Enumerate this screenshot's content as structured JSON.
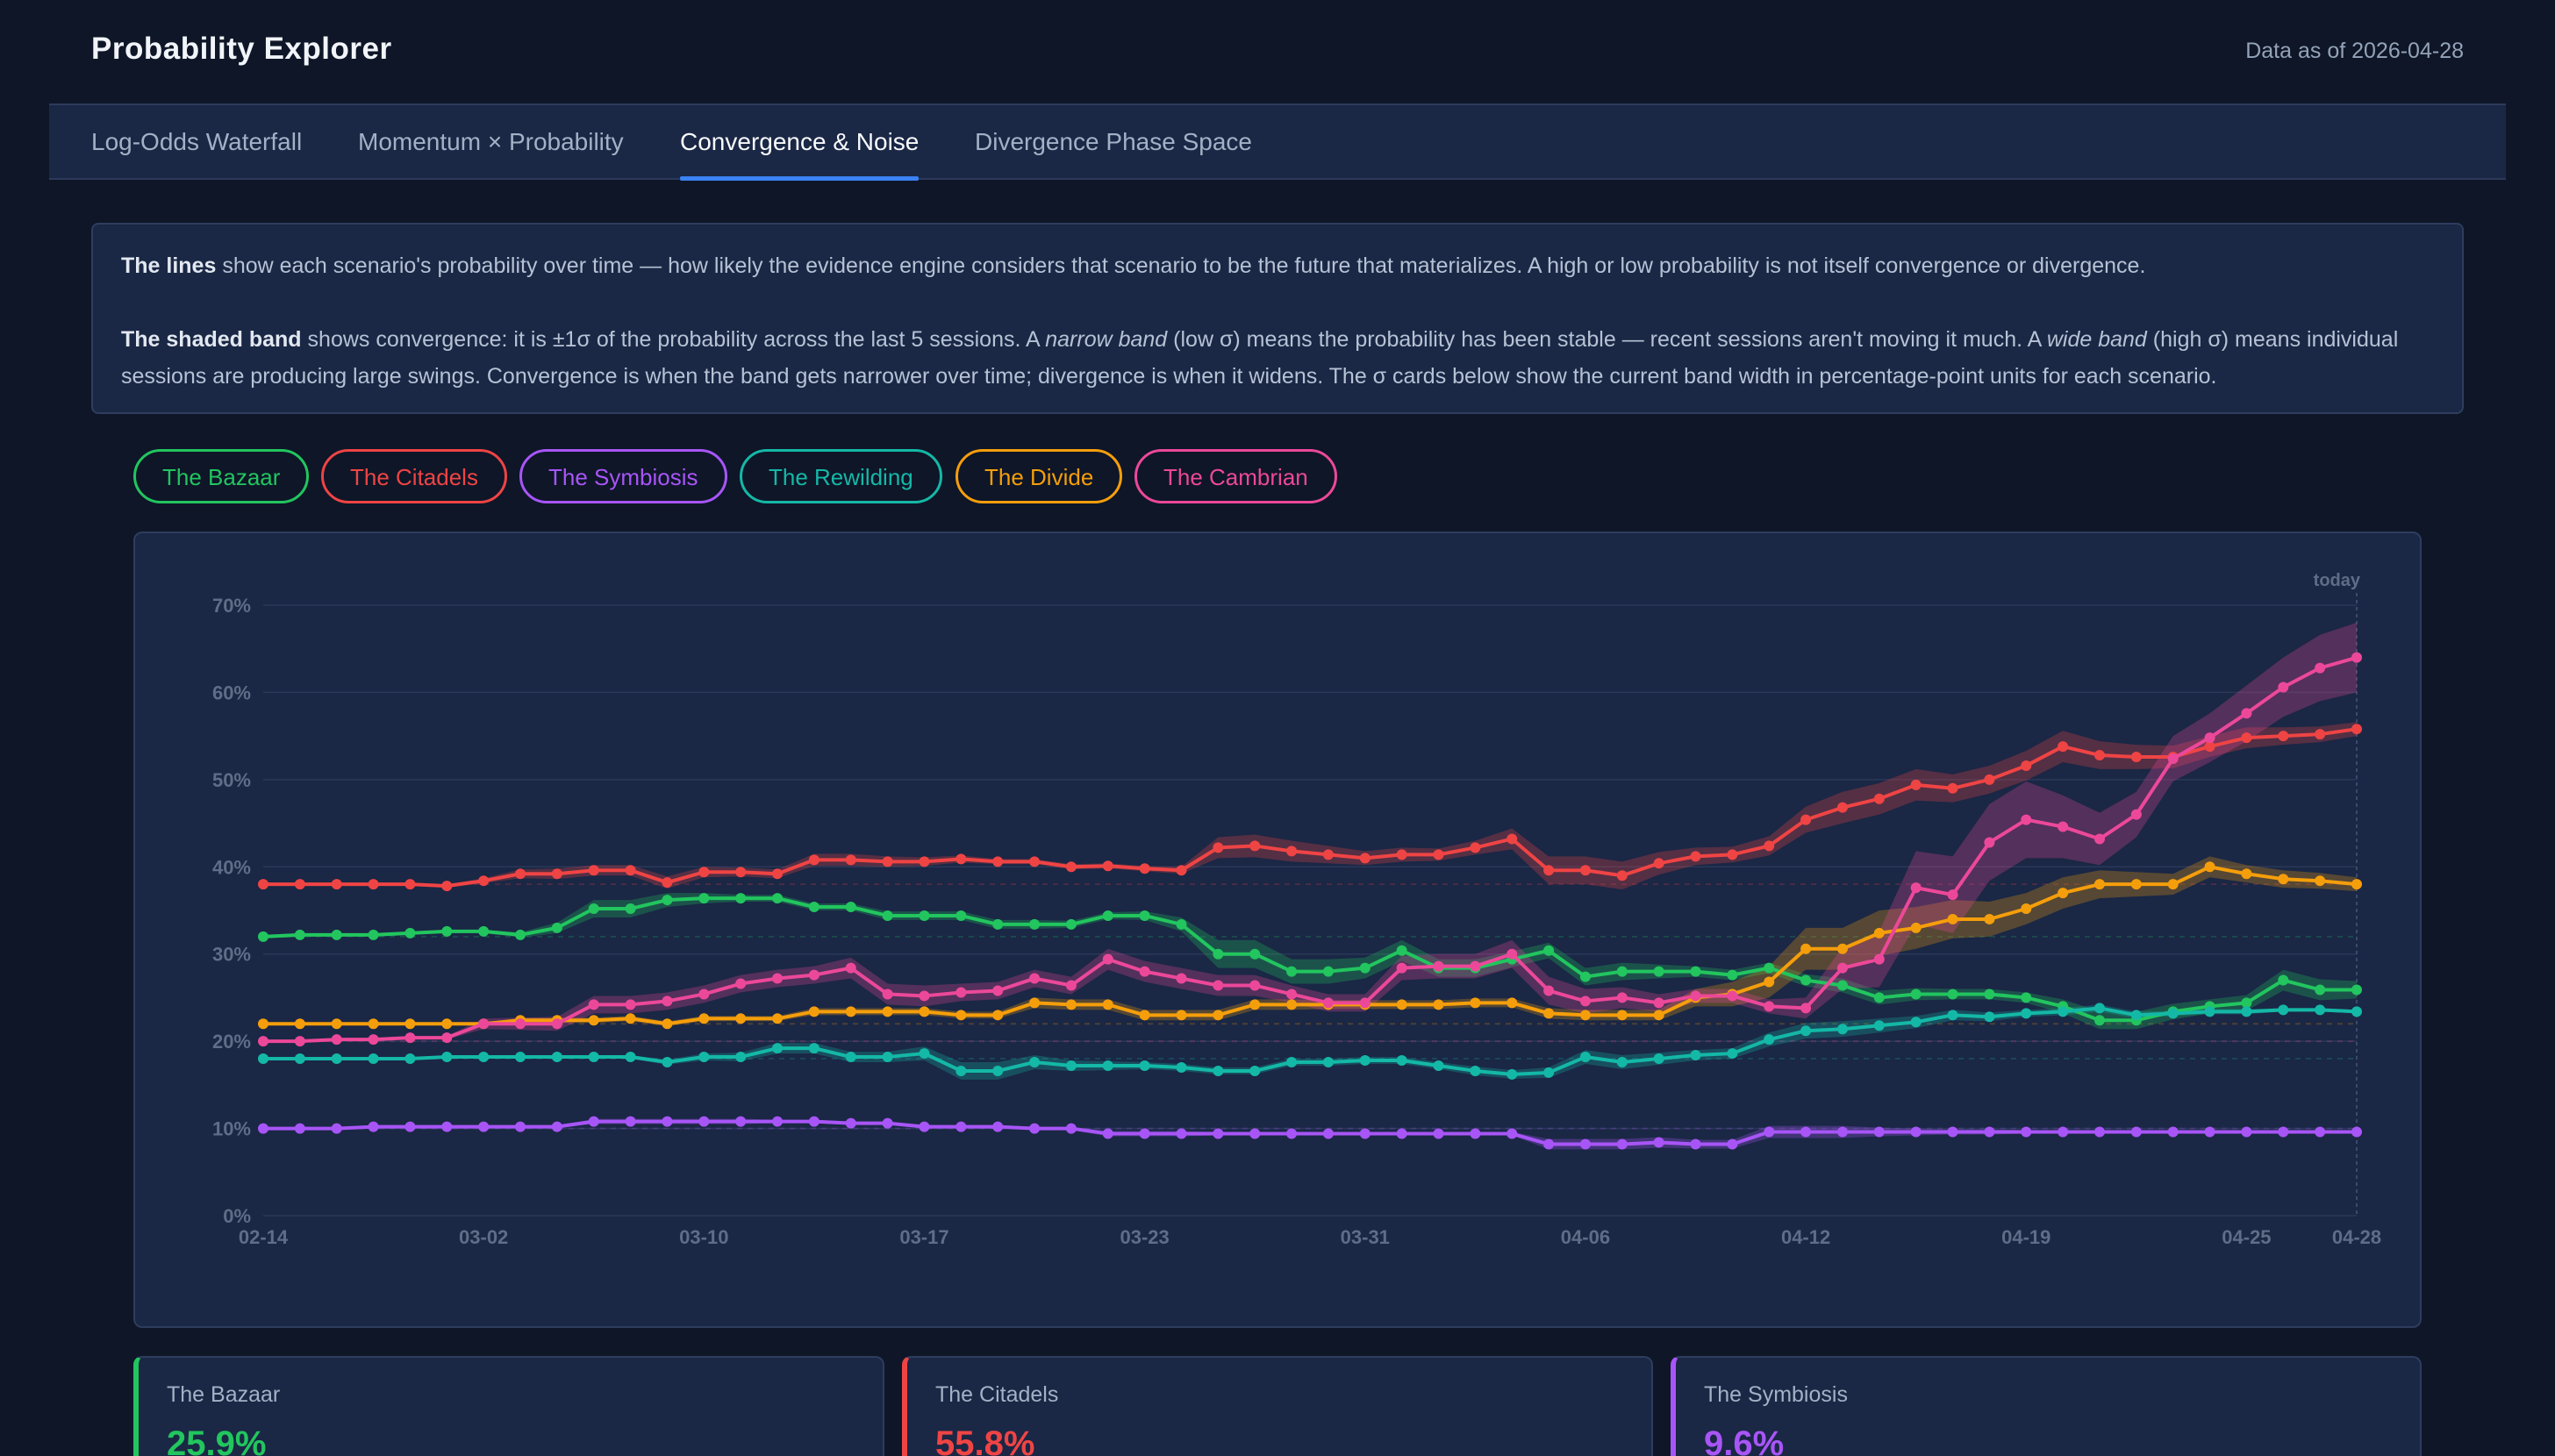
{
  "header": {
    "title": "Probability Explorer",
    "as_of": "Data as of 2026-04-28"
  },
  "tabs": [
    {
      "label": "Log-Odds Waterfall",
      "active": false
    },
    {
      "label": "Momentum × Probability",
      "active": false
    },
    {
      "label": "Convergence & Noise",
      "active": true
    },
    {
      "label": "Divergence Phase Space",
      "active": false
    }
  ],
  "explanation": {
    "p1_bold": "The lines",
    "p1_rest": " show each scenario's probability over time — how likely the evidence engine considers that scenario to be the future that materializes. A high or low probability is not itself convergence or divergence.",
    "p2_bold": "The shaded band",
    "p2_a": " shows convergence: it is ±1σ of the probability across the last 5 sessions. A ",
    "p2_narrow": "narrow band",
    "p2_b": " (low σ) means the probability has been stable — recent sessions aren't moving it much. A ",
    "p2_wide": "wide band",
    "p2_c": " (high σ) means individual sessions are producing large swings. Convergence is when the band gets narrower over time; divergence is when it widens. The σ cards below show the current band width in percentage-point units for each scenario."
  },
  "scenarios": [
    {
      "name": "The Bazaar",
      "color": "#22c55e"
    },
    {
      "name": "The Citadels",
      "color": "#ef4444"
    },
    {
      "name": "The Symbiosis",
      "color": "#a855f7"
    },
    {
      "name": "The Rewilding",
      "color": "#14b8a6"
    },
    {
      "name": "The Divide",
      "color": "#f59e0b"
    },
    {
      "name": "The Cambrian",
      "color": "#ec4899"
    }
  ],
  "chart_data": {
    "type": "line",
    "today_label": "today",
    "ylim": [
      0,
      70
    ],
    "yticks": [
      0,
      10,
      20,
      30,
      40,
      50,
      60,
      70
    ],
    "ytick_labels": [
      "0%",
      "10%",
      "20%",
      "30%",
      "40%",
      "50%",
      "60%",
      "70%"
    ],
    "x_tick_labels": [
      "02-14",
      "03-02",
      "03-10",
      "03-17",
      "03-23",
      "03-31",
      "04-06",
      "04-12",
      "04-19",
      "04-25",
      "04-28"
    ],
    "x_tick_index": [
      0,
      6,
      12,
      18,
      24,
      30,
      36,
      42,
      48,
      54,
      57
    ],
    "grid": true,
    "series": [
      {
        "name": "The Bazaar",
        "color": "#22c55e",
        "values": [
          32.0,
          32.2,
          32.2,
          32.2,
          32.4,
          32.6,
          32.6,
          32.2,
          33.0,
          35.2,
          35.2,
          36.2,
          36.4,
          36.4,
          36.4,
          35.4,
          35.4,
          34.4,
          34.4,
          34.4,
          33.4,
          33.4,
          33.4,
          34.4,
          34.4,
          33.4,
          30.0,
          30.0,
          28.0,
          28.0,
          28.4,
          30.4,
          28.4,
          28.4,
          29.4,
          30.4,
          27.4,
          28.0,
          28.0,
          28.0,
          27.6,
          28.4,
          27.0,
          26.4,
          25.0,
          25.4,
          25.4,
          25.4,
          25.0,
          24.0,
          22.4,
          22.4,
          23.4,
          24.0,
          24.4,
          27.0,
          25.9,
          25.9
        ],
        "sigma": [
          0.2,
          0.2,
          0.2,
          0.2,
          0.2,
          0.2,
          0.2,
          0.3,
          0.6,
          1.0,
          1.0,
          0.8,
          0.6,
          0.4,
          0.4,
          0.4,
          0.4,
          0.5,
          0.5,
          0.5,
          0.5,
          0.5,
          0.4,
          0.4,
          0.5,
          0.8,
          1.6,
          1.6,
          1.4,
          1.4,
          1.2,
          1.2,
          1.0,
          1.0,
          0.9,
          0.9,
          1.0,
          1.0,
          0.8,
          0.6,
          0.6,
          0.6,
          0.7,
          0.8,
          0.8,
          0.7,
          0.6,
          0.6,
          0.6,
          0.8,
          1.0,
          1.0,
          0.9,
          0.8,
          0.9,
          1.2,
          1.2,
          1.0
        ]
      },
      {
        "name": "The Citadels",
        "color": "#ef4444",
        "values": [
          38.0,
          38.0,
          38.0,
          38.0,
          38.0,
          37.8,
          38.4,
          39.2,
          39.2,
          39.6,
          39.6,
          38.2,
          39.4,
          39.4,
          39.2,
          40.8,
          40.8,
          40.6,
          40.6,
          40.9,
          40.6,
          40.6,
          40.0,
          40.1,
          39.8,
          39.6,
          42.2,
          42.4,
          41.8,
          41.4,
          41.0,
          41.4,
          41.4,
          42.2,
          43.2,
          39.6,
          39.6,
          39.0,
          40.4,
          41.2,
          41.4,
          42.4,
          45.4,
          46.8,
          47.8,
          49.4,
          49.0,
          50.0,
          51.6,
          53.8,
          52.8,
          52.6,
          52.6,
          53.8,
          54.8,
          55.0,
          55.2,
          55.8
        ],
        "sigma": [
          0.2,
          0.2,
          0.2,
          0.2,
          0.2,
          0.2,
          0.3,
          0.5,
          0.6,
          0.6,
          0.6,
          0.7,
          0.6,
          0.5,
          0.5,
          0.7,
          0.7,
          0.6,
          0.5,
          0.4,
          0.3,
          0.3,
          0.3,
          0.3,
          0.3,
          0.4,
          1.2,
          1.3,
          1.2,
          1.0,
          0.8,
          0.8,
          0.7,
          0.8,
          1.2,
          1.6,
          1.6,
          1.6,
          1.3,
          1.0,
          0.9,
          1.1,
          1.5,
          1.8,
          1.8,
          1.8,
          1.6,
          1.6,
          1.7,
          1.8,
          1.6,
          1.4,
          1.3,
          1.2,
          1.2,
          1.0,
          0.9,
          0.8
        ]
      },
      {
        "name": "The Symbiosis",
        "color": "#a855f7",
        "values": [
          10.0,
          10.0,
          10.0,
          10.2,
          10.2,
          10.2,
          10.2,
          10.2,
          10.2,
          10.8,
          10.8,
          10.8,
          10.8,
          10.8,
          10.8,
          10.8,
          10.6,
          10.6,
          10.2,
          10.2,
          10.2,
          10.0,
          10.0,
          9.4,
          9.4,
          9.4,
          9.4,
          9.4,
          9.4,
          9.4,
          9.4,
          9.4,
          9.4,
          9.4,
          9.4,
          8.2,
          8.2,
          8.2,
          8.4,
          8.2,
          8.2,
          9.6,
          9.6,
          9.6,
          9.6,
          9.6,
          9.6,
          9.6,
          9.6,
          9.6,
          9.6,
          9.6,
          9.6,
          9.6,
          9.6,
          9.6,
          9.6,
          9.6
        ],
        "sigma": [
          0.1,
          0.1,
          0.1,
          0.1,
          0.1,
          0.1,
          0.1,
          0.1,
          0.1,
          0.3,
          0.3,
          0.3,
          0.3,
          0.3,
          0.2,
          0.2,
          0.2,
          0.2,
          0.2,
          0.2,
          0.2,
          0.2,
          0.2,
          0.3,
          0.3,
          0.3,
          0.2,
          0.2,
          0.2,
          0.2,
          0.2,
          0.2,
          0.2,
          0.2,
          0.2,
          0.6,
          0.6,
          0.6,
          0.6,
          0.5,
          0.5,
          0.7,
          0.7,
          0.7,
          0.5,
          0.4,
          0.3,
          0.3,
          0.2,
          0.2,
          0.2,
          0.2,
          0.2,
          0.2,
          0.2,
          0.2,
          0.2,
          0.2
        ]
      },
      {
        "name": "The Rewilding",
        "color": "#14b8a6",
        "values": [
          18.0,
          18.0,
          18.0,
          18.0,
          18.0,
          18.2,
          18.2,
          18.2,
          18.2,
          18.2,
          18.2,
          17.6,
          18.2,
          18.2,
          19.2,
          19.2,
          18.2,
          18.2,
          18.6,
          16.6,
          16.6,
          17.6,
          17.2,
          17.2,
          17.2,
          17.0,
          16.6,
          16.6,
          17.6,
          17.6,
          17.8,
          17.8,
          17.2,
          16.6,
          16.2,
          16.4,
          18.2,
          17.6,
          18.0,
          18.4,
          18.6,
          20.2,
          21.2,
          21.4,
          21.8,
          22.2,
          23.0,
          22.8,
          23.2,
          23.4,
          23.8,
          23.0,
          23.2,
          23.4,
          23.4,
          23.6,
          23.6,
          23.4
        ],
        "sigma": [
          0.1,
          0.1,
          0.1,
          0.1,
          0.1,
          0.1,
          0.1,
          0.1,
          0.1,
          0.1,
          0.2,
          0.3,
          0.4,
          0.5,
          0.6,
          0.6,
          0.6,
          0.6,
          0.8,
          1.0,
          1.0,
          0.8,
          0.6,
          0.5,
          0.4,
          0.4,
          0.4,
          0.4,
          0.4,
          0.4,
          0.4,
          0.4,
          0.4,
          0.5,
          0.5,
          0.6,
          0.8,
          0.8,
          0.7,
          0.6,
          0.6,
          0.8,
          0.9,
          0.9,
          0.8,
          0.7,
          0.6,
          0.5,
          0.4,
          0.4,
          0.4,
          0.4,
          0.3,
          0.3,
          0.3,
          0.2,
          0.2,
          0.2
        ]
      },
      {
        "name": "The Divide",
        "color": "#f59e0b",
        "values": [
          22.0,
          22.0,
          22.0,
          22.0,
          22.0,
          22.0,
          22.0,
          22.4,
          22.4,
          22.4,
          22.6,
          22.0,
          22.6,
          22.6,
          22.6,
          23.4,
          23.4,
          23.4,
          23.4,
          23.0,
          23.0,
          24.4,
          24.2,
          24.2,
          23.0,
          23.0,
          23.0,
          24.2,
          24.2,
          24.2,
          24.2,
          24.2,
          24.2,
          24.4,
          24.4,
          23.2,
          23.0,
          23.0,
          23.0,
          25.0,
          25.4,
          26.8,
          30.6,
          30.6,
          32.4,
          33.0,
          34.0,
          34.0,
          35.2,
          37.0,
          38.0,
          38.0,
          38.0,
          40.0,
          39.2,
          38.6,
          38.4,
          38.0
        ],
        "sigma": [
          0.1,
          0.1,
          0.1,
          0.1,
          0.1,
          0.1,
          0.1,
          0.3,
          0.3,
          0.3,
          0.3,
          0.3,
          0.3,
          0.3,
          0.3,
          0.4,
          0.4,
          0.4,
          0.4,
          0.4,
          0.4,
          0.6,
          0.6,
          0.6,
          0.6,
          0.6,
          0.6,
          0.6,
          0.6,
          0.5,
          0.5,
          0.5,
          0.5,
          0.5,
          0.5,
          0.6,
          0.6,
          0.6,
          0.6,
          1.0,
          1.4,
          1.8,
          2.4,
          2.4,
          2.6,
          2.4,
          2.2,
          2.0,
          1.8,
          1.8,
          1.6,
          1.4,
          1.2,
          1.2,
          1.0,
          1.0,
          0.9,
          0.8
        ]
      },
      {
        "name": "The Cambrian",
        "color": "#ec4899",
        "values": [
          20.0,
          20.0,
          20.2,
          20.2,
          20.4,
          20.4,
          22.0,
          22.0,
          22.0,
          24.2,
          24.2,
          24.6,
          25.4,
          26.6,
          27.2,
          27.6,
          28.4,
          25.4,
          25.2,
          25.6,
          25.8,
          27.2,
          26.4,
          29.4,
          28.0,
          27.2,
          26.4,
          26.4,
          25.4,
          24.4,
          24.4,
          28.4,
          28.6,
          28.6,
          30.0,
          25.8,
          24.6,
          25.0,
          24.4,
          25.2,
          25.2,
          24.0,
          23.8,
          28.4,
          29.4,
          37.6,
          36.8,
          42.8,
          45.4,
          44.6,
          43.2,
          46.0,
          52.4,
          54.8,
          57.6,
          60.6,
          62.8,
          64.0
        ],
        "sigma": [
          0.1,
          0.1,
          0.1,
          0.1,
          0.2,
          0.2,
          0.6,
          0.7,
          0.8,
          1.0,
          1.0,
          1.0,
          1.0,
          1.0,
          1.0,
          1.0,
          1.2,
          1.2,
          1.2,
          1.0,
          1.0,
          1.0,
          1.0,
          1.2,
          1.2,
          1.2,
          1.2,
          1.2,
          1.0,
          1.0,
          1.0,
          1.4,
          1.4,
          1.4,
          1.6,
          1.6,
          1.4,
          1.2,
          1.0,
          0.8,
          0.8,
          0.8,
          1.2,
          2.4,
          3.2,
          4.2,
          4.4,
          4.4,
          4.4,
          3.6,
          3.0,
          2.6,
          2.6,
          2.8,
          3.2,
          3.4,
          3.8,
          4.0
        ]
      }
    ]
  },
  "cards": [
    {
      "name": "The Bazaar",
      "value": "25.9%",
      "color": "#22c55e"
    },
    {
      "name": "The Citadels",
      "value": "55.8%",
      "color": "#ef4444"
    },
    {
      "name": "The Symbiosis",
      "value": "9.6%",
      "color": "#a855f7"
    }
  ]
}
